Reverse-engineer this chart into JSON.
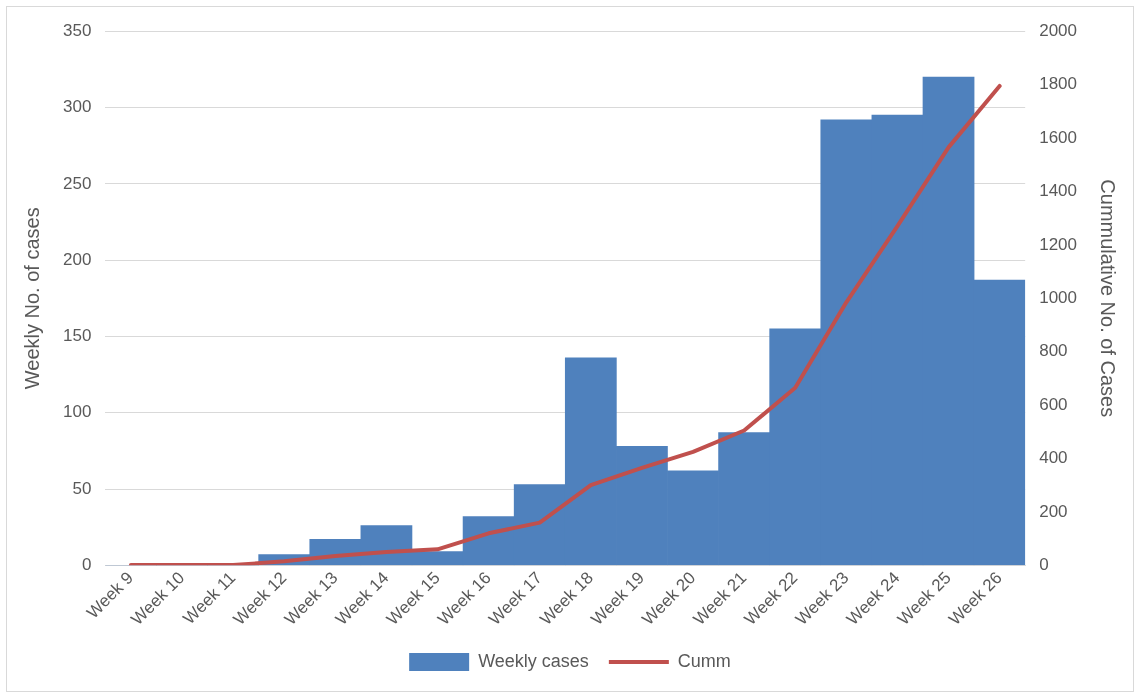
{
  "chart_data": {
    "type": "bar",
    "categories": [
      "Week 9",
      "Week 10",
      "Week 11",
      "Week 12",
      "Week 13",
      "Week 14",
      "Week 15",
      "Week 16",
      "Week 17",
      "Week 18",
      "Week 19",
      "Week 20",
      "Week 21",
      "Week 22",
      "Week 23",
      "Week 24",
      "Week 25",
      "Week 26"
    ],
    "series": [
      {
        "name": "Weekly cases",
        "color": "#4f81bd",
        "values": [
          0,
          0,
          0,
          7,
          17,
          26,
          9,
          32,
          53,
          136,
          78,
          62,
          87,
          155,
          292,
          295,
          320,
          187
        ]
      },
      {
        "name": "Cumm",
        "type": "line",
        "axis": "y2",
        "color": "#c0504d",
        "values": [
          1,
          1,
          1,
          15,
          35,
          50,
          60,
          120,
          160,
          300,
          365,
          425,
          505,
          665,
          985,
          1270,
          1565,
          1795
        ]
      }
    ],
    "ylabel": "Weekly No. of cases",
    "y2label": "Cummulative No. of Cases",
    "ylim": [
      0,
      350
    ],
    "yticks": [
      0,
      50,
      100,
      150,
      200,
      250,
      300,
      350
    ],
    "y2lim": [
      0,
      2000
    ],
    "y2ticks": [
      0,
      200,
      400,
      600,
      800,
      1000,
      1200,
      1400,
      1600,
      1800,
      2000
    ],
    "grid": "y",
    "legend": "bottom",
    "marker": "none",
    "line_style": "solid"
  }
}
